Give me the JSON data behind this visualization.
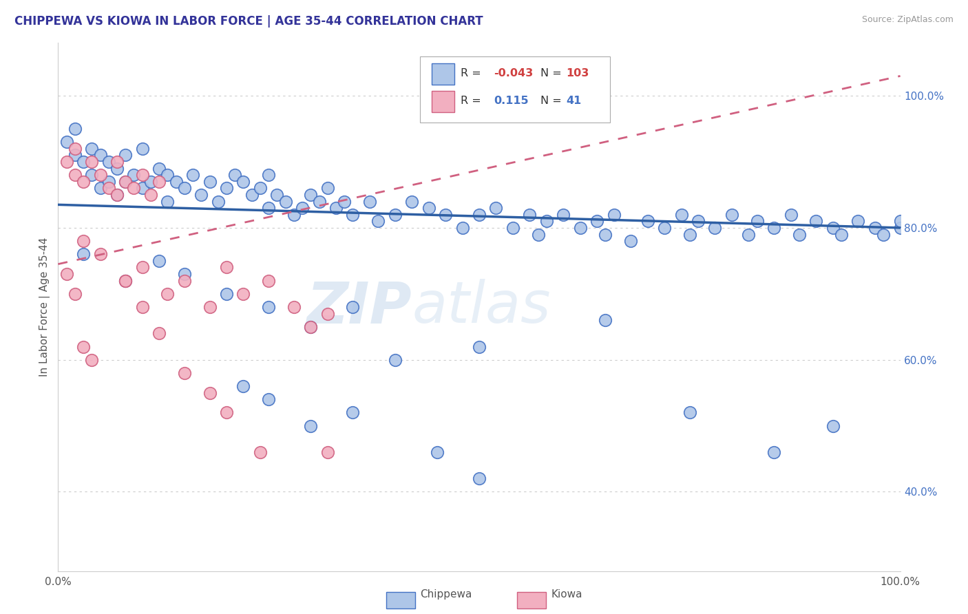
{
  "title": "CHIPPEWA VS KIOWA IN LABOR FORCE | AGE 35-44 CORRELATION CHART",
  "source": "Source: ZipAtlas.com",
  "ylabel": "In Labor Force | Age 35-44",
  "watermark_line1": "ZIP",
  "watermark_line2": "atlas",
  "chippewa_color": "#aec6e8",
  "chippewa_edge": "#4472c4",
  "kiowa_color": "#f2afc0",
  "kiowa_edge": "#d06080",
  "trend_chippewa_color": "#2e5fa3",
  "trend_kiowa_color": "#d06080",
  "legend_chippewa_R": "-0.043",
  "legend_chippewa_N": "103",
  "legend_kiowa_R": "0.115",
  "legend_kiowa_N": "41",
  "background_color": "#ffffff"
}
